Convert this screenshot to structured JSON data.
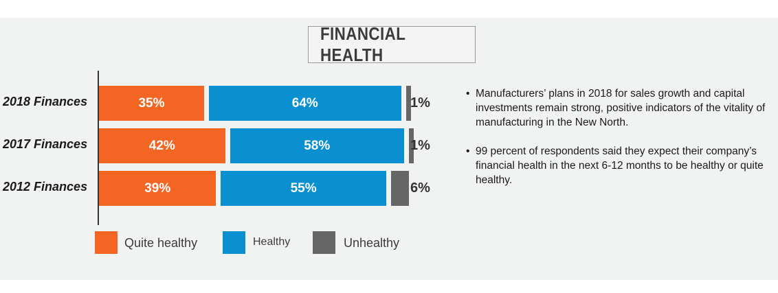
{
  "colors": {
    "quite_healthy": "#f26522",
    "healthy": "#0a8fd0",
    "unhealthy": "#666666",
    "panel_background": "#f1f2f2"
  },
  "chart_data": {
    "type": "bar",
    "orientation": "horizontal",
    "stacked": true,
    "title": "FINANCIAL HEALTH",
    "categories": [
      "2018 Finances",
      "2017 Finances",
      "2012 Finances"
    ],
    "series": [
      {
        "name": "Quite healthy",
        "values": [
          35,
          42,
          39
        ],
        "labels": [
          "35%",
          "42%",
          "39%"
        ]
      },
      {
        "name": "Healthy",
        "values": [
          64,
          58,
          55
        ],
        "labels": [
          "64%",
          "58%",
          "55%"
        ]
      },
      {
        "name": "Unhealthy",
        "values": [
          1,
          1,
          6
        ],
        "labels": [
          "1%",
          "1%",
          "6%"
        ]
      }
    ],
    "legend_position": "bottom",
    "grid": false
  },
  "notes": [
    {
      "bullet": "•",
      "text": "Manufacturers’ plans in 2018 for sales growth and capital investments remain strong, positive indicators of the vitality of manufacturing in the New North."
    },
    {
      "bullet": "•",
      "text": "99 percent of respondents said they expect their company’s financial health in the next 6-12 months to be healthy or quite healthy."
    }
  ]
}
